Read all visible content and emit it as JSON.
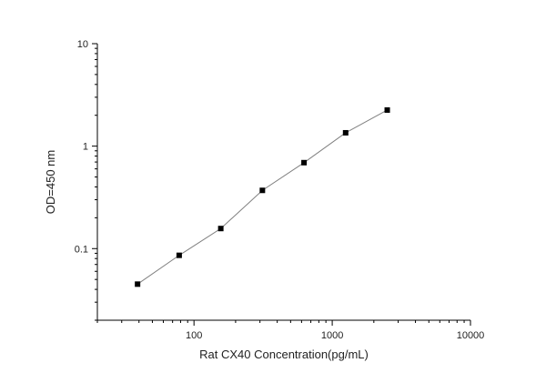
{
  "chart_data": {
    "type": "line",
    "xlabel": "Rat CX40 Concentration(pg/mL)",
    "ylabel": "OD=450 nm",
    "x_scale": "log",
    "y_scale": "log",
    "xlim": [
      20,
      10000
    ],
    "ylim": [
      0.02,
      10
    ],
    "x_ticks": [
      100,
      1000,
      10000
    ],
    "x_tick_labels": [
      "100",
      "1000",
      "10000"
    ],
    "y_ticks": [
      0.1,
      1,
      10
    ],
    "y_tick_labels": [
      "0.1",
      "1",
      "10"
    ],
    "grid": false,
    "series": [
      {
        "x": [
          39.06,
          78.13,
          156.25,
          312.5,
          625,
          1250,
          2500
        ],
        "y": [
          0.045,
          0.086,
          0.157,
          0.37,
          0.69,
          1.35,
          2.25
        ],
        "marker": "square",
        "color": "#000000",
        "line_color": "#808080"
      }
    ]
  }
}
